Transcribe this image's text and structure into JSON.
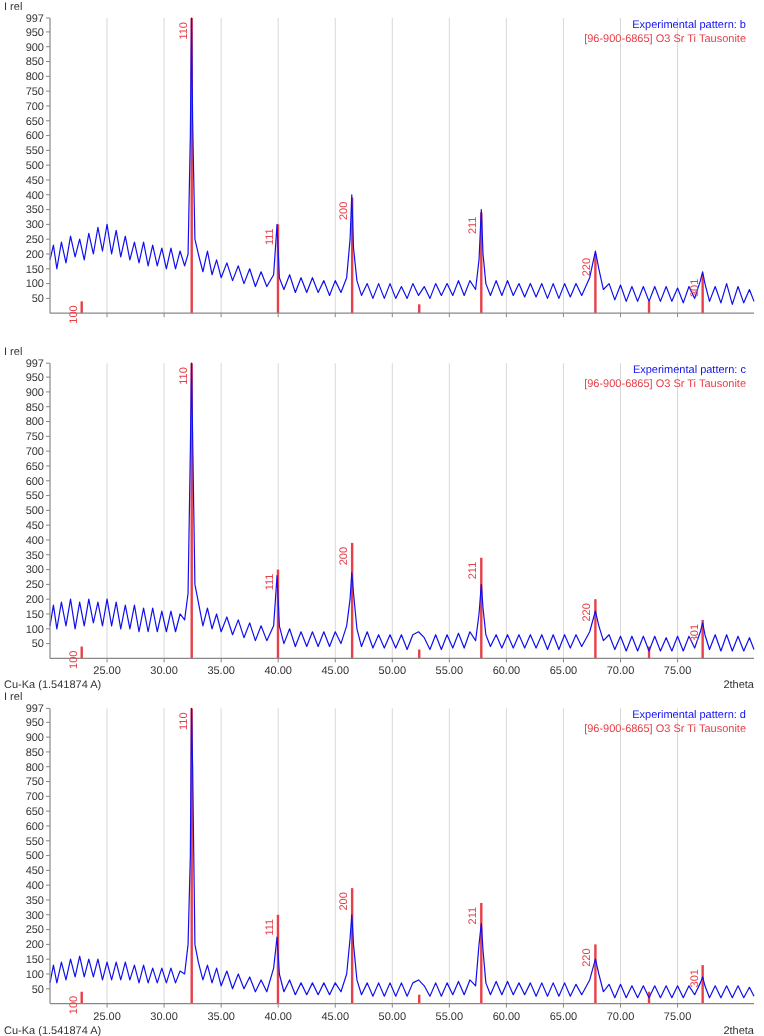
{
  "chart_data": [
    {
      "type": "line",
      "ylabel": "I rel",
      "xlim": [
        20,
        81.7
      ],
      "ylim": [
        0,
        997
      ],
      "xticks": [
        25,
        30,
        35,
        40,
        45,
        50,
        55,
        60,
        65,
        70,
        75
      ],
      "yticks": [
        50,
        100,
        150,
        200,
        250,
        300,
        350,
        400,
        450,
        500,
        550,
        600,
        650,
        700,
        750,
        800,
        850,
        900,
        950,
        997
      ],
      "tick_labels": "y",
      "grid": "x",
      "legend": "top right",
      "x": [
        20,
        20.3,
        20.6,
        21,
        21.4,
        21.8,
        22.2,
        22.6,
        23,
        23.4,
        23.8,
        24.2,
        24.6,
        25,
        25.4,
        25.8,
        26.2,
        26.6,
        27,
        27.4,
        27.8,
        28.2,
        28.6,
        29,
        29.4,
        29.8,
        30.2,
        30.6,
        31,
        31.4,
        31.8,
        32.1,
        32.3,
        32.4,
        32.5,
        32.7,
        33,
        33.4,
        33.8,
        34.2,
        34.6,
        35,
        35.5,
        36,
        36.5,
        37,
        37.5,
        38,
        38.5,
        39,
        39.6,
        39.9,
        40.1,
        40.5,
        41,
        41.5,
        42,
        42.5,
        43,
        43.5,
        44,
        44.5,
        45,
        45.5,
        46,
        46.3,
        46.45,
        46.6,
        46.9,
        47.3,
        47.8,
        48.3,
        48.8,
        49.3,
        49.8,
        50.3,
        50.8,
        51.3,
        51.8,
        52.3,
        52.8,
        53.3,
        53.8,
        54.3,
        54.8,
        55.3,
        55.8,
        56.3,
        56.8,
        57.3,
        57.6,
        57.8,
        57.95,
        58.2,
        58.6,
        59.1,
        59.6,
        60.1,
        60.6,
        61.1,
        61.6,
        62.1,
        62.6,
        63.1,
        63.6,
        64.1,
        64.6,
        65.1,
        65.6,
        66.1,
        66.6,
        67.3,
        67.8,
        68.1,
        68.5,
        69,
        69.5,
        70,
        70.5,
        71,
        71.5,
        72,
        72.5,
        73,
        73.5,
        74,
        74.5,
        75,
        75.5,
        76,
        76.5,
        77,
        77.2,
        77.4,
        77.8,
        78.3,
        78.8,
        79.3,
        79.8,
        80.3,
        80.8,
        81.3,
        81.7
      ],
      "series": [
        {
          "name": "Experimental pattern: b",
          "color": "#1010ee",
          "values": [
            180,
            230,
            150,
            240,
            170,
            260,
            190,
            250,
            180,
            270,
            200,
            290,
            210,
            300,
            200,
            280,
            190,
            260,
            180,
            240,
            170,
            240,
            160,
            230,
            160,
            220,
            150,
            220,
            150,
            210,
            160,
            200,
            600,
            997,
            650,
            250,
            200,
            140,
            210,
            130,
            180,
            120,
            170,
            110,
            160,
            100,
            150,
            90,
            140,
            90,
            130,
            300,
            120,
            80,
            130,
            70,
            120,
            70,
            120,
            70,
            110,
            60,
            110,
            70,
            120,
            250,
            400,
            220,
            110,
            60,
            100,
            50,
            100,
            50,
            100,
            50,
            90,
            50,
            100,
            60,
            90,
            50,
            100,
            60,
            100,
            60,
            110,
            60,
            110,
            80,
            180,
            350,
            200,
            100,
            60,
            110,
            60,
            110,
            60,
            100,
            55,
            100,
            55,
            100,
            50,
            100,
            50,
            100,
            55,
            100,
            60,
            120,
            210,
            150,
            80,
            100,
            45,
            95,
            40,
            90,
            40,
            90,
            40,
            90,
            40,
            90,
            40,
            85,
            35,
            90,
            50,
            110,
            140,
            100,
            40,
            90,
            35,
            100,
            30,
            90,
            35,
            80,
            40
          ]
        },
        {
          "name": "[96-900-6865] O3 Sr Ti Tausonite",
          "type": "bar",
          "color": "#e8404a",
          "x": [
            22.78,
            32.42,
            39.98,
            46.48,
            52.36,
            57.8,
            67.8,
            72.5,
            77.2
          ],
          "values": [
            40,
            997,
            300,
            390,
            30,
            340,
            200,
            40,
            130
          ]
        }
      ],
      "annotations": [
        {
          "text": "100",
          "x": 22.78,
          "y": 40
        },
        {
          "text": "110",
          "x": 32.42,
          "y": 997
        },
        {
          "text": "111",
          "x": 39.98,
          "y": 300
        },
        {
          "text": "200",
          "x": 46.48,
          "y": 390
        },
        {
          "text": "211",
          "x": 57.8,
          "y": 340
        },
        {
          "text": "220",
          "x": 67.8,
          "y": 200
        },
        {
          "text": "301",
          "x": 77.2,
          "y": 130
        }
      ]
    },
    {
      "type": "line",
      "xlabel": "2theta",
      "ylabel": "I rel",
      "xlim": [
        20,
        81.7
      ],
      "ylim": [
        0,
        997
      ],
      "xticks": [
        {
          "value": 25,
          "label": "25.00"
        },
        {
          "value": 30,
          "label": "30.00"
        },
        {
          "value": 35,
          "label": "35.00"
        },
        {
          "value": 40,
          "label": "40.00"
        },
        {
          "value": 45,
          "label": "45.00"
        },
        {
          "value": 50,
          "label": "50.00"
        },
        {
          "value": 55,
          "label": "55.00"
        },
        {
          "value": 60,
          "label": "60.00"
        },
        {
          "value": 65,
          "label": "65.00"
        },
        {
          "value": 70,
          "label": "70.00"
        },
        {
          "value": 75,
          "label": "75.00"
        }
      ],
      "yticks": [
        50,
        100,
        150,
        200,
        250,
        300,
        350,
        400,
        450,
        500,
        550,
        600,
        650,
        700,
        750,
        800,
        850,
        900,
        950,
        997
      ],
      "grid": "x",
      "legend": "top right",
      "x": [
        20,
        20.3,
        20.6,
        21,
        21.4,
        21.8,
        22.2,
        22.6,
        23,
        23.4,
        23.8,
        24.2,
        24.6,
        25,
        25.4,
        25.8,
        26.2,
        26.6,
        27,
        27.4,
        27.8,
        28.2,
        28.6,
        29,
        29.4,
        29.8,
        30.2,
        30.6,
        31,
        31.4,
        31.8,
        32.1,
        32.3,
        32.4,
        32.5,
        32.7,
        33,
        33.4,
        33.8,
        34.2,
        34.6,
        35,
        35.5,
        36,
        36.5,
        37,
        37.5,
        38,
        38.5,
        39,
        39.6,
        39.9,
        40.1,
        40.5,
        41,
        41.5,
        42,
        42.5,
        43,
        43.5,
        44,
        44.5,
        45,
        45.5,
        46,
        46.3,
        46.45,
        46.6,
        46.9,
        47.3,
        47.8,
        48.3,
        48.8,
        49.3,
        49.8,
        50.3,
        50.8,
        51.3,
        51.8,
        52.3,
        52.8,
        53.3,
        53.8,
        54.3,
        54.8,
        55.3,
        55.8,
        56.3,
        56.8,
        57.3,
        57.6,
        57.8,
        57.95,
        58.2,
        58.6,
        59.1,
        59.6,
        60.1,
        60.6,
        61.1,
        61.6,
        62.1,
        62.6,
        63.1,
        63.6,
        64.1,
        64.6,
        65.1,
        65.6,
        66.1,
        66.6,
        67.3,
        67.8,
        68.1,
        68.5,
        69,
        69.5,
        70,
        70.5,
        71,
        71.5,
        72,
        72.5,
        73,
        73.5,
        74,
        74.5,
        75,
        75.5,
        76,
        76.5,
        77,
        77.2,
        77.4,
        77.8,
        78.3,
        78.8,
        79.3,
        79.8,
        80.3,
        80.8,
        81.3,
        81.7
      ],
      "series": [
        {
          "name": "Experimental pattern: c",
          "color": "#1010ee",
          "values": [
            110,
            180,
            100,
            190,
            110,
            200,
            100,
            190,
            110,
            200,
            120,
            190,
            110,
            200,
            110,
            190,
            100,
            180,
            100,
            180,
            90,
            170,
            90,
            170,
            90,
            160,
            90,
            160,
            90,
            150,
            130,
            220,
            700,
            997,
            750,
            250,
            190,
            110,
            170,
            100,
            150,
            90,
            140,
            80,
            130,
            70,
            120,
            60,
            110,
            60,
            110,
            280,
            110,
            50,
            100,
            40,
            90,
            40,
            90,
            40,
            90,
            40,
            90,
            50,
            110,
            200,
            290,
            220,
            100,
            40,
            90,
            35,
            80,
            35,
            80,
            35,
            80,
            30,
            80,
            90,
            70,
            30,
            80,
            30,
            80,
            35,
            85,
            35,
            90,
            60,
            150,
            250,
            170,
            80,
            40,
            80,
            35,
            80,
            35,
            80,
            35,
            80,
            35,
            80,
            30,
            80,
            30,
            80,
            35,
            80,
            40,
            90,
            160,
            110,
            60,
            80,
            30,
            75,
            25,
            75,
            25,
            75,
            25,
            75,
            25,
            70,
            25,
            75,
            25,
            75,
            35,
            90,
            120,
            80,
            30,
            80,
            25,
            80,
            25,
            75,
            25,
            70,
            30
          ]
        },
        {
          "name": "[96-900-6865] O3 Sr Ti Tausonite",
          "type": "bar",
          "color": "#e8404a",
          "x": [
            22.78,
            32.42,
            39.98,
            46.48,
            52.36,
            57.8,
            67.8,
            72.5,
            77.2
          ],
          "values": [
            40,
            997,
            300,
            390,
            30,
            340,
            200,
            40,
            130
          ]
        }
      ],
      "annotations": [
        "Cu-Ka (1.541874 A)",
        {
          "text": "100",
          "x": 22.78,
          "y": 40
        },
        {
          "text": "110",
          "x": 32.42,
          "y": 997
        },
        {
          "text": "111",
          "x": 39.98,
          "y": 300
        },
        {
          "text": "200",
          "x": 46.48,
          "y": 390
        },
        {
          "text": "211",
          "x": 57.8,
          "y": 340
        },
        {
          "text": "220",
          "x": 67.8,
          "y": 200
        },
        {
          "text": "301",
          "x": 77.2,
          "y": 130
        }
      ]
    },
    {
      "type": "line",
      "xlabel": "2theta",
      "ylabel": "I rel",
      "xlim": [
        20,
        81.7
      ],
      "ylim": [
        0,
        997
      ],
      "xticks": [
        {
          "value": 25,
          "label": "25.00"
        },
        {
          "value": 30,
          "label": "30.00"
        },
        {
          "value": 35,
          "label": "35.00"
        },
        {
          "value": 40,
          "label": "40.00"
        },
        {
          "value": 45,
          "label": "45.00"
        },
        {
          "value": 50,
          "label": "50.00"
        },
        {
          "value": 55,
          "label": "55.00"
        },
        {
          "value": 60,
          "label": "60.00"
        },
        {
          "value": 65,
          "label": "65.00"
        },
        {
          "value": 70,
          "label": "70.00"
        },
        {
          "value": 75,
          "label": "75.00"
        }
      ],
      "yticks": [
        50,
        100,
        150,
        200,
        250,
        300,
        350,
        400,
        450,
        500,
        550,
        600,
        650,
        700,
        750,
        800,
        850,
        900,
        950,
        997
      ],
      "grid": "x",
      "legend": "top right",
      "x": [
        20,
        20.3,
        20.6,
        21,
        21.4,
        21.8,
        22.2,
        22.6,
        23,
        23.4,
        23.8,
        24.2,
        24.6,
        25,
        25.4,
        25.8,
        26.2,
        26.6,
        27,
        27.4,
        27.8,
        28.2,
        28.6,
        29,
        29.4,
        29.8,
        30.2,
        30.6,
        31,
        31.4,
        31.8,
        32.1,
        32.3,
        32.4,
        32.5,
        32.7,
        33,
        33.4,
        33.8,
        34.2,
        34.6,
        35,
        35.5,
        36,
        36.5,
        37,
        37.5,
        38,
        38.5,
        39,
        39.6,
        39.9,
        40.1,
        40.5,
        41,
        41.5,
        42,
        42.5,
        43,
        43.5,
        44,
        44.5,
        45,
        45.5,
        46,
        46.3,
        46.45,
        46.6,
        46.9,
        47.3,
        47.8,
        48.3,
        48.8,
        49.3,
        49.8,
        50.3,
        50.8,
        51.3,
        51.8,
        52.3,
        52.8,
        53.3,
        53.8,
        54.3,
        54.8,
        55.3,
        55.8,
        56.3,
        56.8,
        57.3,
        57.6,
        57.8,
        57.95,
        58.2,
        58.6,
        59.1,
        59.6,
        60.1,
        60.6,
        61.1,
        61.6,
        62.1,
        62.6,
        63.1,
        63.6,
        64.1,
        64.6,
        65.1,
        65.6,
        66.1,
        66.6,
        67.3,
        67.8,
        68.1,
        68.5,
        69,
        69.5,
        70,
        70.5,
        71,
        71.5,
        72,
        72.5,
        73,
        73.5,
        74,
        74.5,
        75,
        75.5,
        76,
        76.5,
        77,
        77.2,
        77.4,
        77.8,
        78.3,
        78.8,
        79.3,
        79.8,
        80.3,
        80.8,
        81.3,
        81.7
      ],
      "series": [
        {
          "name": "Experimental pattern: d",
          "color": "#1010ee",
          "values": [
            70,
            130,
            70,
            140,
            80,
            150,
            90,
            160,
            90,
            150,
            90,
            150,
            80,
            140,
            80,
            140,
            80,
            140,
            80,
            130,
            70,
            130,
            70,
            120,
            70,
            120,
            70,
            120,
            70,
            110,
            100,
            200,
            500,
            997,
            800,
            200,
            140,
            80,
            130,
            70,
            120,
            60,
            110,
            50,
            100,
            50,
            90,
            40,
            80,
            40,
            120,
            225,
            100,
            40,
            80,
            30,
            70,
            30,
            70,
            30,
            70,
            30,
            70,
            40,
            100,
            220,
            300,
            200,
            80,
            30,
            70,
            25,
            70,
            25,
            70,
            25,
            70,
            25,
            70,
            80,
            60,
            25,
            70,
            25,
            70,
            30,
            75,
            30,
            80,
            60,
            200,
            270,
            180,
            70,
            30,
            75,
            30,
            75,
            30,
            70,
            30,
            70,
            25,
            70,
            25,
            70,
            25,
            70,
            25,
            65,
            30,
            80,
            150,
            100,
            40,
            65,
            20,
            65,
            20,
            60,
            20,
            60,
            20,
            60,
            20,
            60,
            20,
            60,
            20,
            60,
            30,
            70,
            90,
            60,
            20,
            60,
            20,
            60,
            20,
            60,
            20,
            55,
            25
          ]
        },
        {
          "name": "[96-900-6865] O3 Sr Ti Tausonite",
          "type": "bar",
          "color": "#e8404a",
          "x": [
            22.78,
            32.42,
            39.98,
            46.48,
            52.36,
            57.8,
            67.8,
            72.5,
            77.2
          ],
          "values": [
            40,
            997,
            300,
            390,
            30,
            340,
            200,
            40,
            130
          ]
        }
      ],
      "annotations": [
        "Cu-Ka (1.541874 A)",
        {
          "text": "100",
          "x": 22.78,
          "y": 40
        },
        {
          "text": "110",
          "x": 32.42,
          "y": 997
        },
        {
          "text": "111",
          "x": 39.98,
          "y": 300
        },
        {
          "text": "200",
          "x": 46.48,
          "y": 390
        },
        {
          "text": "211",
          "x": 57.8,
          "y": 340
        },
        {
          "text": "220",
          "x": 67.8,
          "y": 200
        },
        {
          "text": "301",
          "x": 77.2,
          "y": 130
        }
      ]
    }
  ]
}
